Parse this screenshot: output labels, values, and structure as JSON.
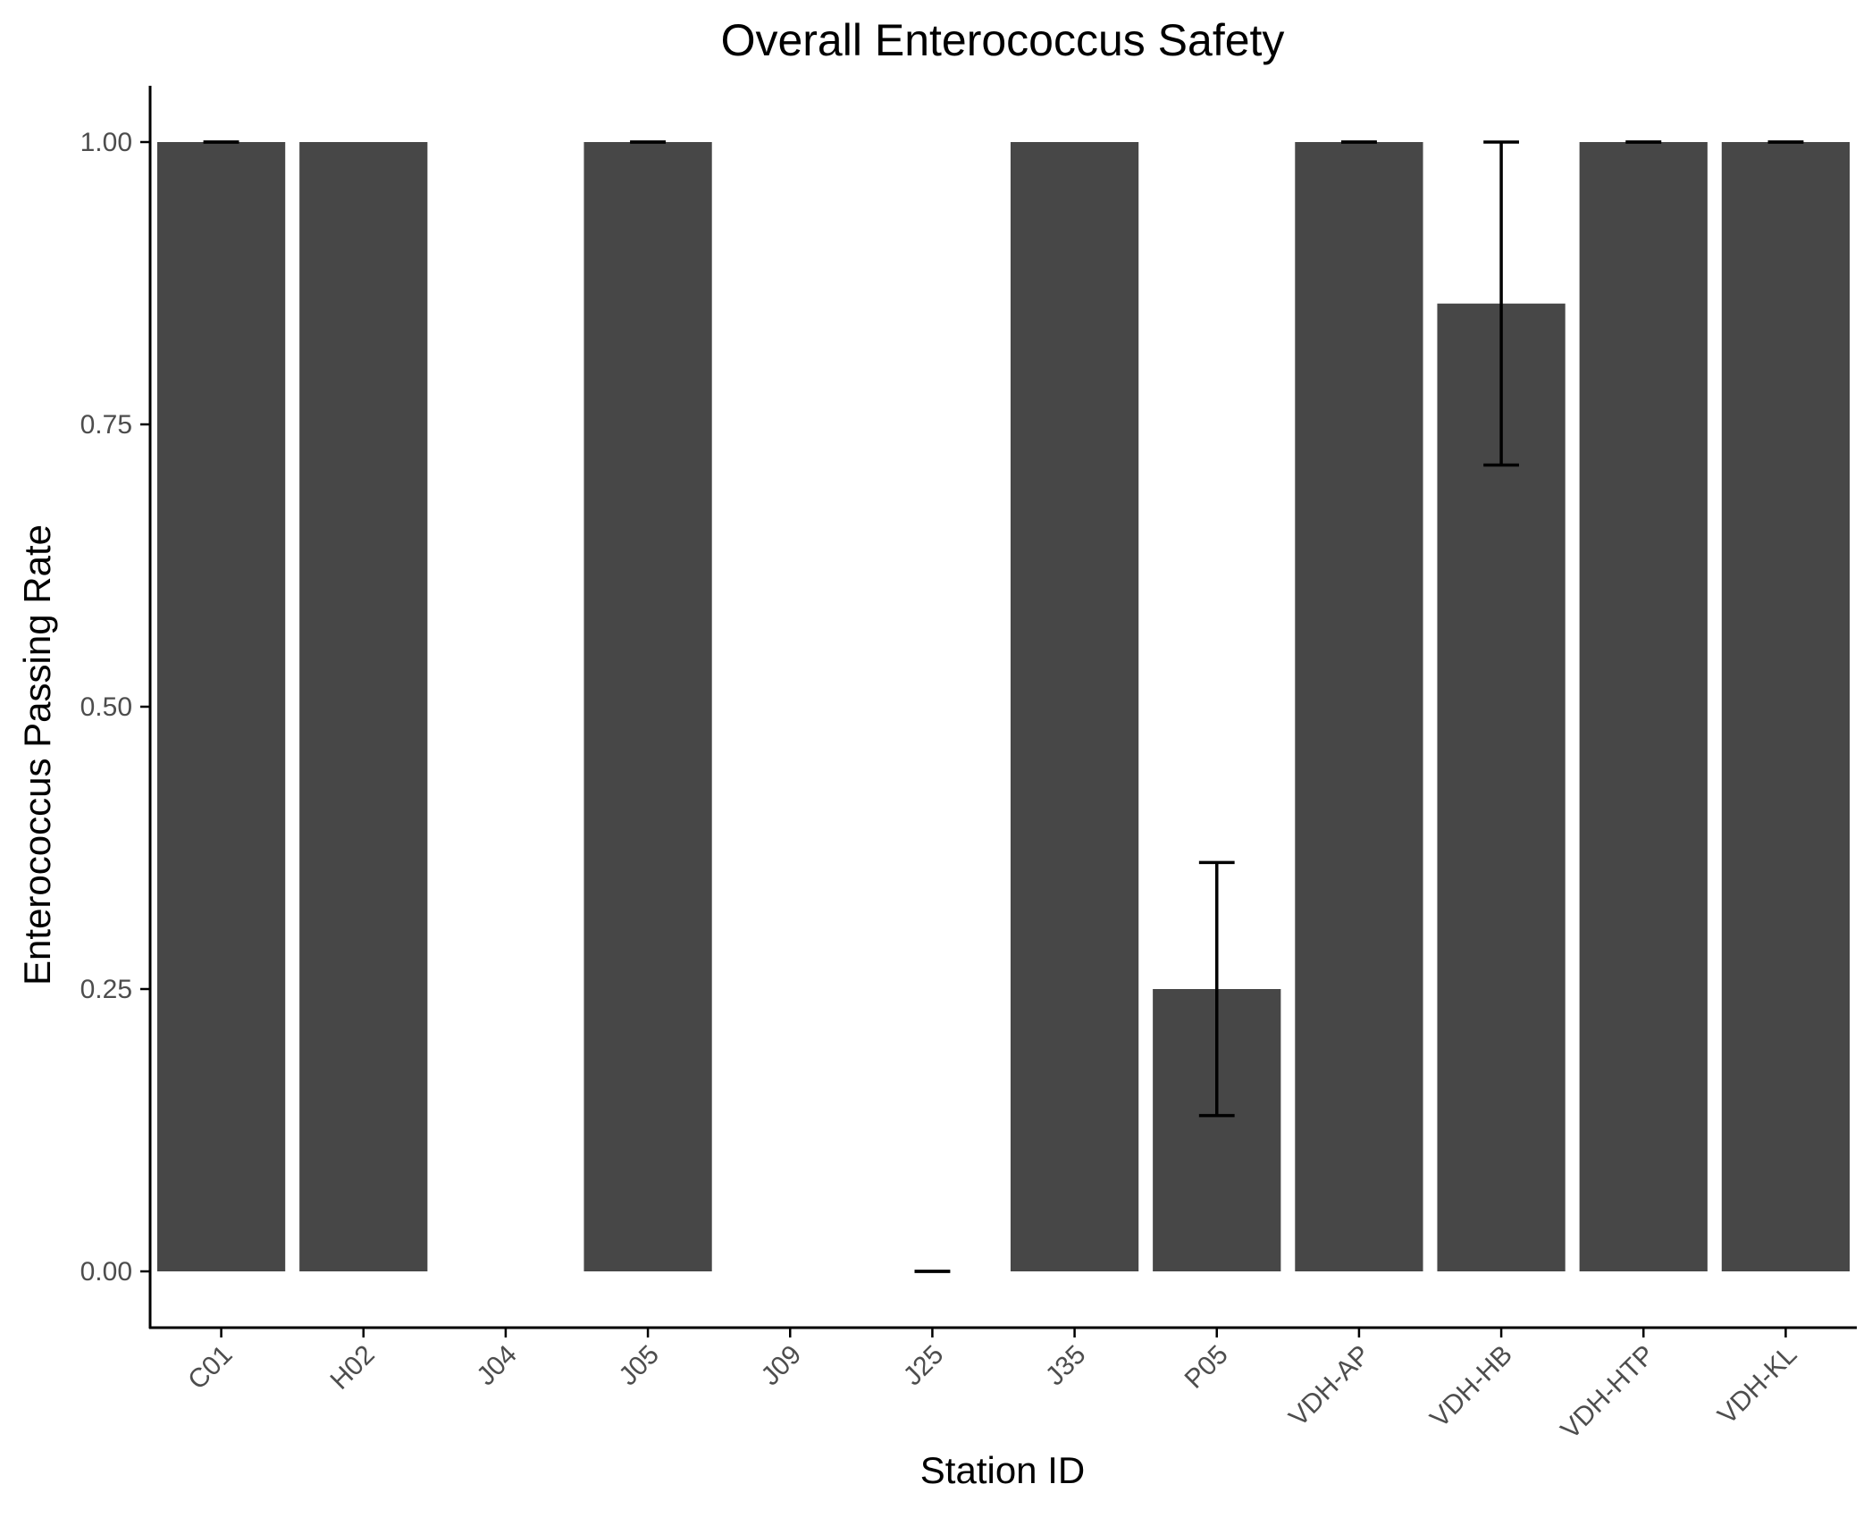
{
  "chart_data": {
    "type": "bar",
    "title": "Overall Enterococcus Safety",
    "xlabel": "Station ID",
    "ylabel": "Enterococcus Passing Rate",
    "categories": [
      "C01",
      "H02",
      "J04",
      "J05",
      "J09",
      "J25",
      "J35",
      "P05",
      "VDH-AP",
      "VDH-HB",
      "VDH-HTP",
      "VDH-KL"
    ],
    "values": [
      1.0,
      1.0,
      null,
      1.0,
      null,
      0.0,
      1.0,
      0.25,
      1.0,
      0.857,
      1.0,
      1.0
    ],
    "error_low": [
      1.0,
      null,
      null,
      1.0,
      null,
      0.0,
      null,
      0.138,
      1.0,
      0.714,
      1.0,
      1.0
    ],
    "error_high": [
      1.0,
      null,
      null,
      1.0,
      null,
      0.0,
      null,
      0.362,
      1.0,
      1.0,
      1.0,
      1.0
    ],
    "yticks": [
      "0.00",
      "0.25",
      "0.50",
      "0.75",
      "1.00"
    ],
    "ylim": [
      -0.05,
      1.05
    ],
    "grid": false,
    "legend": "none",
    "colors": {
      "bar": "#474747",
      "axis": "#000000",
      "tick_label": "#4d4d4d",
      "errorbar": "#000000"
    }
  }
}
